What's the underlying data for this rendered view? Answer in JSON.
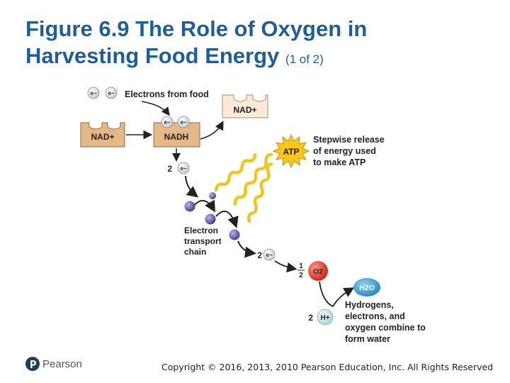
{
  "title": {
    "line1": "Figure 6.9 The Role of Oxygen in",
    "line2": "Harvesting Food Energy",
    "part": "(1 of 2)"
  },
  "diagram": {
    "electron_symbol": "e−",
    "electrons_from_food": "Electrons from food",
    "nad_plus_left": "NAD+",
    "nad_plus_right": "NAD+",
    "nadh": "NADH",
    "two_e_top": "2",
    "two_e_bottom": "2",
    "atp": "ATP",
    "stepwise": [
      "Stepwise release",
      "of energy used",
      "to make ATP"
    ],
    "etc": [
      "Electron",
      "transport",
      "chain"
    ],
    "half_num": "1",
    "half_den": "2",
    "o2": "O2",
    "h2o": "H2O",
    "two_h": "2",
    "h_plus": "H+",
    "hydrogens": [
      "Hydrogens,",
      "electrons, and",
      "oxygen combine to",
      "form water"
    ]
  },
  "footer": {
    "logo": "Pearson",
    "copyright": "Copyright © 2016, 2013, 2010 Pearson Education, Inc. All Rights Reserved"
  }
}
